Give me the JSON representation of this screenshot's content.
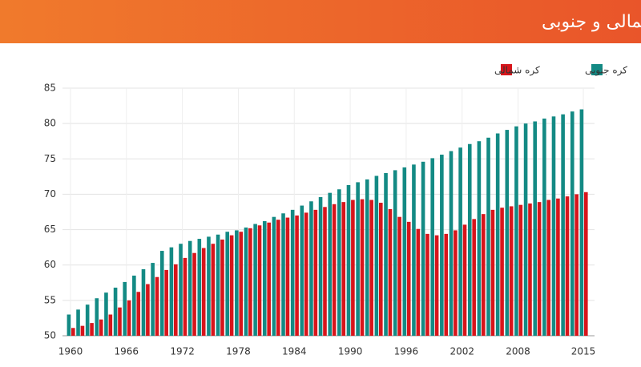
{
  "chart_data": {
    "type": "bar",
    "title": "تفاوت میزان امید به زندگی بین دو کره شمالی و جنوبی",
    "x": [
      1960,
      1961,
      1962,
      1963,
      1964,
      1965,
      1966,
      1967,
      1968,
      1969,
      1970,
      1971,
      1972,
      1973,
      1974,
      1975,
      1976,
      1977,
      1978,
      1979,
      1980,
      1981,
      1982,
      1983,
      1984,
      1985,
      1986,
      1987,
      1988,
      1989,
      1990,
      1991,
      1992,
      1993,
      1994,
      1995,
      1996,
      1997,
      1998,
      1999,
      2000,
      2001,
      2002,
      2003,
      2004,
      2005,
      2006,
      2007,
      2008,
      2009,
      2010,
      2011,
      2012,
      2013,
      2014,
      2015
    ],
    "series": [
      {
        "name": "کره جنوبی",
        "color": "#138a84",
        "values": [
          53.0,
          53.7,
          54.4,
          55.3,
          56.1,
          56.8,
          57.6,
          58.5,
          59.4,
          60.3,
          62.0,
          62.5,
          63.0,
          63.4,
          63.7,
          64.0,
          64.3,
          64.7,
          64.9,
          65.3,
          65.8,
          66.2,
          66.8,
          67.3,
          67.8,
          68.4,
          69.0,
          69.6,
          70.2,
          70.7,
          71.3,
          71.7,
          72.1,
          72.6,
          73.0,
          73.4,
          73.8,
          74.2,
          74.6,
          75.1,
          75.6,
          76.1,
          76.6,
          77.1,
          77.5,
          78.0,
          78.6,
          79.1,
          79.6,
          80.0,
          80.3,
          80.7,
          81.0,
          81.3,
          81.7,
          82.0
        ]
      },
      {
        "name": "کره شمالی",
        "color": "#d7151b",
        "values": [
          51.1,
          51.4,
          51.8,
          52.3,
          53.0,
          54.0,
          55.0,
          56.2,
          57.3,
          58.3,
          59.3,
          60.1,
          61.0,
          61.7,
          62.4,
          63.0,
          63.6,
          64.2,
          64.7,
          65.2,
          65.6,
          66.0,
          66.4,
          66.7,
          67.0,
          67.4,
          67.8,
          68.2,
          68.6,
          68.9,
          69.2,
          69.3,
          69.2,
          68.8,
          67.9,
          66.8,
          66.1,
          65.1,
          64.4,
          64.2,
          64.4,
          64.9,
          65.7,
          66.5,
          67.2,
          67.8,
          68.1,
          68.3,
          68.5,
          68.7,
          68.9,
          69.2,
          69.4,
          69.7,
          70.0,
          70.3
        ]
      }
    ],
    "xlim": [
      1960,
      2015
    ],
    "xticks": [
      1960,
      1966,
      1972,
      1978,
      1984,
      1990,
      1996,
      2002,
      2008,
      2015
    ],
    "ylim": [
      50,
      85
    ],
    "yticks": [
      50,
      55,
      60,
      65,
      70,
      75,
      80,
      85
    ],
    "grid": true,
    "legend": "top-right"
  }
}
